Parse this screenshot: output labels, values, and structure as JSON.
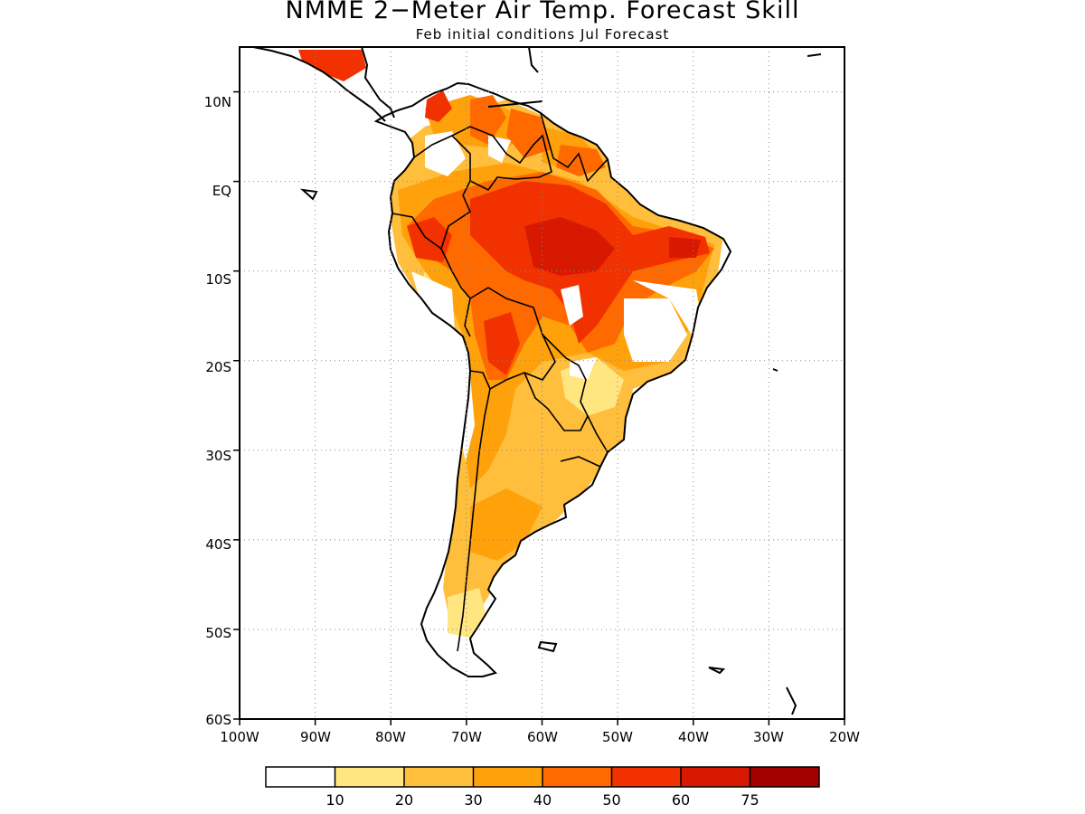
{
  "title": "NMME 2−Meter Air Temp. Forecast Skill",
  "subtitle": "Feb initial conditions  Jul Forecast",
  "map": {
    "lon_range": [
      -100,
      -20
    ],
    "lat_range": [
      -60,
      15
    ],
    "lon_ticks": [
      "100W",
      "90W",
      "80W",
      "70W",
      "60W",
      "50W",
      "40W",
      "30W",
      "20W"
    ],
    "lat_ticks": [
      "10N",
      "EQ",
      "10S",
      "20S",
      "30S",
      "40S",
      "50S",
      "60S"
    ],
    "gridlines": "dotted"
  },
  "colorbar": {
    "bins": [
      {
        "color": "#ffffff",
        "label": ""
      },
      {
        "color": "#ffe680",
        "label": "10"
      },
      {
        "color": "#ffbe3c",
        "label": "20"
      },
      {
        "color": "#ffa10a",
        "label": "30"
      },
      {
        "color": "#ff6a00",
        "label": "40"
      },
      {
        "color": "#f23100",
        "label": "50"
      },
      {
        "color": "#d61900",
        "label": "60"
      },
      {
        "color": "#a30000",
        "label": "75"
      }
    ]
  }
}
